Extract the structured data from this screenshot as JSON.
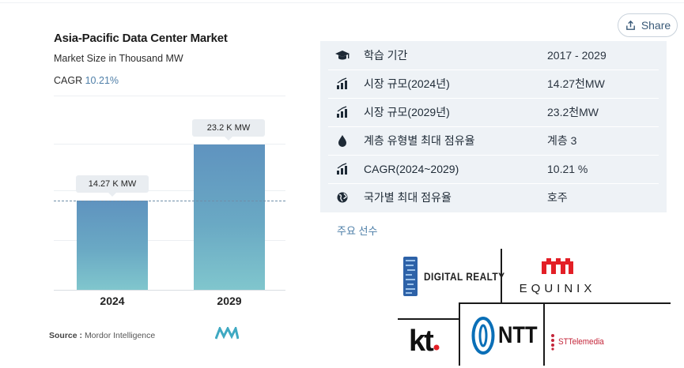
{
  "share": {
    "label": "Share",
    "icon": "share-icon"
  },
  "chart": {
    "title": "Asia-Pacific Data Center Market",
    "subtitle": "Market Size in Thousand MW",
    "cagr_label": "CAGR",
    "cagr_value": "10.21%",
    "source_label": "Source :",
    "source_value": "Mordor Intelligence"
  },
  "chart_data": {
    "type": "bar",
    "title": "Asia-Pacific Data Center Market",
    "subtitle": "Market Size in Thousand MW",
    "categories": [
      "2024",
      "2029"
    ],
    "values": [
      14.27,
      23.2
    ],
    "data_labels": [
      "14.27 K MW",
      "23.2 K MW"
    ],
    "ylim": [
      0,
      23.2
    ],
    "reference_line": 14.27,
    "grid": true,
    "colors": {
      "bar_top": "#5f93bf",
      "bar_bottom": "#80c6cd",
      "reference": "#6f8ea9"
    }
  },
  "info": {
    "rows": [
      {
        "icon": "graduation-cap-icon",
        "label": "학습 기간",
        "value": "2017 - 2029"
      },
      {
        "icon": "bar-chart-up-icon",
        "label": "시장 규모(2024년)",
        "value": "14.27천MW"
      },
      {
        "icon": "bar-chart-up-icon",
        "label": "시장 규모(2029년)",
        "value": "23.2천MW"
      },
      {
        "icon": "drop-icon",
        "label": "계층 유형별 최대 점유율",
        "value": "계층 3"
      },
      {
        "icon": "bar-chart-up-icon",
        "label": "CAGR(2024~2029)",
        "value": "10.21 %"
      },
      {
        "icon": "globe-icon",
        "label": "국가별 최대 점유율",
        "value": "호주"
      }
    ],
    "background": "#eef2f6"
  },
  "players": {
    "title": "주요 선수",
    "logos": {
      "digital_realty": "DIGITAL REALTY",
      "equinix": "EQUINIX",
      "kt": "kt",
      "ntt": "NTT",
      "st_telemedia": "STTelemedia"
    }
  }
}
